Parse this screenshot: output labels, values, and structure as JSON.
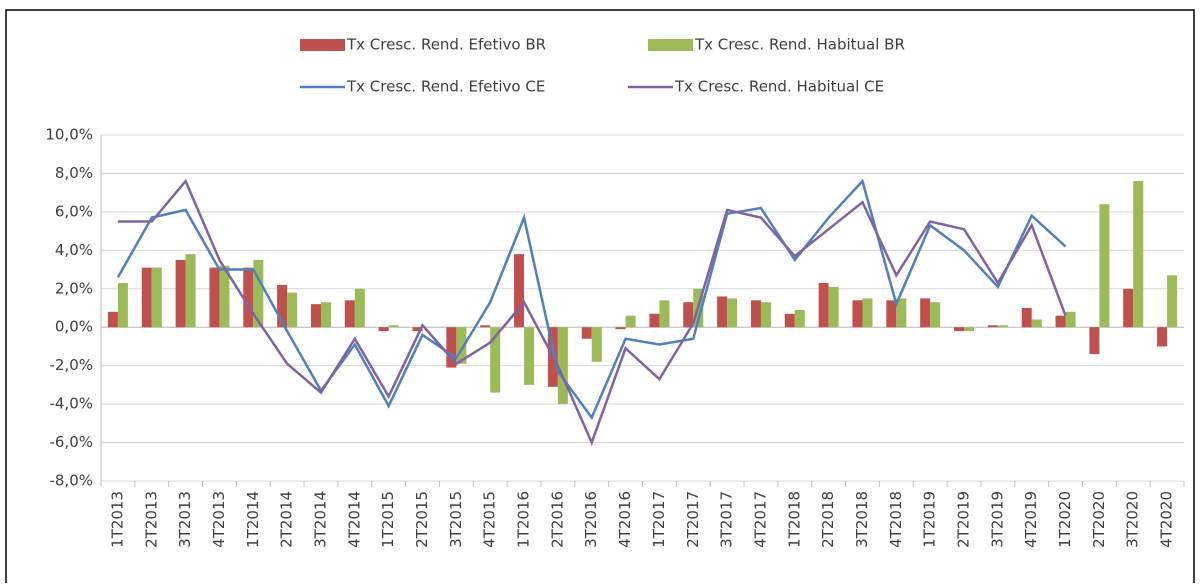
{
  "chart_data": {
    "type": "bar_line",
    "categories": [
      "1T2013",
      "2T2013",
      "3T2013",
      "4T2013",
      "1T2014",
      "2T2014",
      "3T2014",
      "4T2014",
      "1T2015",
      "2T2015",
      "3T2015",
      "4T2015",
      "1T2016",
      "2T2016",
      "3T2016",
      "4T2016",
      "1T2017",
      "2T2017",
      "3T2017",
      "4T2017",
      "1T2018",
      "2T2018",
      "3T2018",
      "4T2018",
      "1T2019",
      "2T2019",
      "3T2019",
      "4T2019",
      "1T2020",
      "2T2020",
      "3T2020",
      "4T2020"
    ],
    "series": [
      {
        "name": "Tx Cresc. Rend. Efetivo BR",
        "type": "bar",
        "color": "#c0504d",
        "values": [
          0.8,
          3.1,
          3.5,
          3.1,
          3.1,
          2.2,
          1.2,
          1.4,
          -0.2,
          -0.2,
          -2.1,
          0.1,
          3.8,
          -3.1,
          -0.6,
          -0.1,
          0.7,
          1.3,
          1.6,
          1.4,
          0.7,
          2.3,
          1.4,
          1.4,
          1.5,
          -0.2,
          0.1,
          1.0,
          0.6,
          -1.4,
          2.0,
          -1.0
        ]
      },
      {
        "name": "Tx Cresc. Rend. Habitual BR",
        "type": "bar",
        "color": "#9bbb59",
        "values": [
          2.3,
          3.1,
          3.8,
          3.2,
          3.5,
          1.8,
          1.3,
          2.0,
          0.1,
          0.0,
          -1.9,
          -3.4,
          -3.0,
          -4.0,
          -1.8,
          0.6,
          1.4,
          2.0,
          1.5,
          1.3,
          0.9,
          2.1,
          1.5,
          1.5,
          1.3,
          -0.2,
          0.1,
          0.4,
          0.8,
          6.4,
          7.6,
          2.7
        ]
      },
      {
        "name": "Tx Cresc. Rend. Efetivo CE",
        "type": "line",
        "color": "#4f81bd",
        "values": [
          2.6,
          5.7,
          6.1,
          3.0,
          3.0,
          -0.2,
          -3.3,
          -0.9,
          -4.1,
          -0.4,
          -1.6,
          1.3,
          5.7,
          -2.3,
          -4.7,
          -0.6,
          -0.9,
          -0.6,
          5.9,
          6.2,
          3.5,
          5.7,
          7.6,
          1.2,
          5.3,
          4.0,
          2.1,
          5.8,
          4.2,
          null,
          null,
          null
        ]
      },
      {
        "name": "Tx Cresc. Rend. Habitual CE",
        "type": "line",
        "color": "#8064a2",
        "values": [
          5.5,
          5.5,
          7.6,
          3.5,
          0.7,
          -1.9,
          -3.4,
          -0.6,
          -3.6,
          0.1,
          -1.9,
          -0.8,
          1.3,
          -2.0,
          -6.0,
          -1.1,
          -2.7,
          0.2,
          6.1,
          5.7,
          3.7,
          5.1,
          6.5,
          2.7,
          5.5,
          5.1,
          2.3,
          5.3,
          0.6,
          null,
          null,
          null
        ]
      }
    ],
    "ylim": [
      -8,
      10
    ],
    "yticks": [
      {
        "value": -8,
        "label": "-8,0%"
      },
      {
        "value": -6,
        "label": "-6,0%"
      },
      {
        "value": -4,
        "label": "-4,0%"
      },
      {
        "value": -2,
        "label": "-2,0%"
      },
      {
        "value": 0,
        "label": "0,0%"
      },
      {
        "value": 2,
        "label": "2,0%"
      },
      {
        "value": 4,
        "label": "4,0%"
      },
      {
        "value": 6,
        "label": "6,0%"
      },
      {
        "value": 8,
        "label": "8,0%"
      },
      {
        "value": 10,
        "label": "10,0%"
      }
    ],
    "grid": true
  }
}
